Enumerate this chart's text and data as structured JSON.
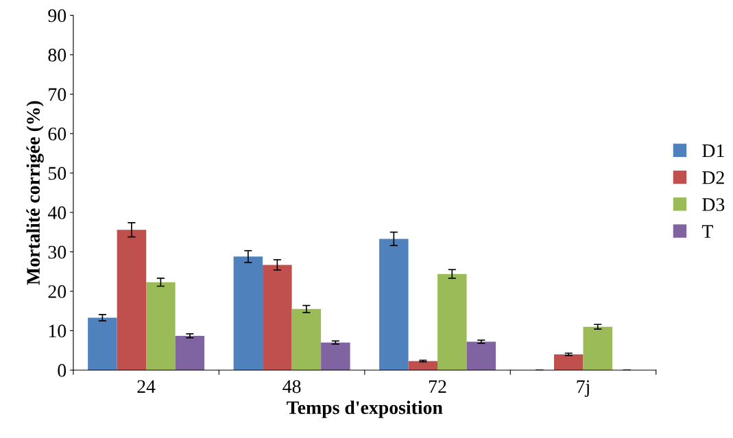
{
  "chart_data": {
    "type": "bar",
    "xlabel": "Temps d'exposition",
    "ylabel": "Mortalité corrigée (%)",
    "categories": [
      "24",
      "48",
      "72",
      "7j"
    ],
    "series": [
      {
        "name": "D1",
        "color": "#4f81bd",
        "values": [
          13.3,
          28.8,
          33.3,
          0
        ],
        "errors": [
          0.8,
          1.5,
          1.7,
          0
        ]
      },
      {
        "name": "D2",
        "color": "#c0504d",
        "values": [
          35.6,
          26.7,
          2.3,
          4.0
        ],
        "errors": [
          1.8,
          1.3,
          0.2,
          0.3
        ]
      },
      {
        "name": "D3",
        "color": "#9bbb59",
        "values": [
          22.3,
          15.5,
          24.4,
          11.0
        ],
        "errors": [
          1.0,
          0.9,
          1.1,
          0.6
        ]
      },
      {
        "name": "T",
        "color": "#8064a2",
        "values": [
          8.7,
          7.0,
          7.2,
          0
        ],
        "errors": [
          0.5,
          0.4,
          0.4,
          0
        ]
      }
    ],
    "ylim": [
      0,
      90
    ],
    "yticks": [
      0,
      10,
      20,
      30,
      40,
      50,
      60,
      70,
      80,
      90
    ],
    "grid": false,
    "legend": "right"
  }
}
